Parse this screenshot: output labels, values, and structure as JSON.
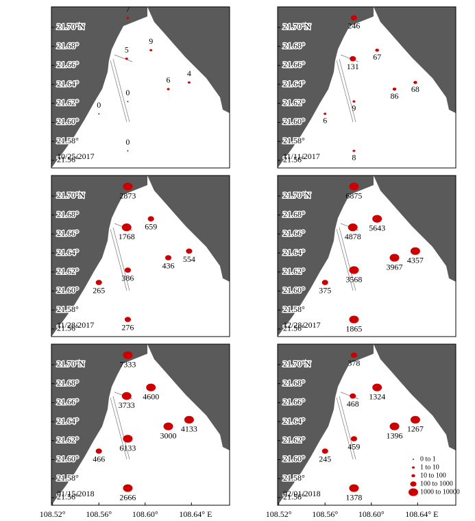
{
  "map": {
    "lon_lim": [
      108.519,
      108.673
    ],
    "lat_lim": [
      21.552,
      21.7216
    ],
    "lat_ticks": [
      {
        "value": 21.7,
        "label": "21.70°N"
      },
      {
        "value": 21.68,
        "label": "21.68°"
      },
      {
        "value": 21.66,
        "label": "21.66°"
      },
      {
        "value": 21.64,
        "label": "21.64°"
      },
      {
        "value": 21.62,
        "label": "21.62°"
      },
      {
        "value": 21.6,
        "label": "21.60°"
      },
      {
        "value": 21.58,
        "label": "21.58°"
      },
      {
        "value": 21.56,
        "label": "21.56°"
      }
    ],
    "lon_ticks": [
      {
        "value": 108.52,
        "label": "108.52°"
      },
      {
        "value": 108.56,
        "label": "108.56°"
      },
      {
        "value": 108.6,
        "label": "108.60°"
      },
      {
        "value": 108.64,
        "label": "108.64° E"
      }
    ],
    "stations": [
      {
        "lon": 108.585,
        "lat": 21.71
      },
      {
        "lon": 108.605,
        "lat": 21.676
      },
      {
        "lon": 108.584,
        "lat": 21.667
      },
      {
        "lon": 108.62,
        "lat": 21.635
      },
      {
        "lon": 108.638,
        "lat": 21.642
      },
      {
        "lon": 108.585,
        "lat": 21.622
      },
      {
        "lon": 108.56,
        "lat": 21.609
      },
      {
        "lon": 108.585,
        "lat": 21.57
      }
    ],
    "legend": {
      "bins": [
        0,
        1,
        10,
        100,
        1000,
        10000
      ],
      "labels": [
        "0 to 1",
        "1 to 10",
        "10 to 100",
        "100 to 1000",
        "1000 to 10000"
      ]
    },
    "panels": [
      {
        "date": "10/25/2017",
        "values": [
          7,
          9,
          5,
          6,
          4,
          0,
          0,
          0
        ]
      },
      {
        "date": "11/11/2017",
        "values": [
          246,
          67,
          131,
          86,
          68,
          9,
          6,
          8
        ]
      },
      {
        "date": "11/28/2017",
        "values": [
          2873,
          659,
          1768,
          436,
          554,
          386,
          265,
          276
        ]
      },
      {
        "date": "12/28/2017",
        "values": [
          6875,
          5643,
          4878,
          3967,
          4357,
          3568,
          375,
          1865
        ]
      },
      {
        "date": "01/15/2018",
        "values": [
          7333,
          4600,
          3733,
          3000,
          4133,
          6133,
          466,
          2666
        ]
      },
      {
        "date": "02/01/2018",
        "values": [
          378,
          1324,
          468,
          1396,
          1267,
          459,
          245,
          1378
        ]
      }
    ]
  }
}
